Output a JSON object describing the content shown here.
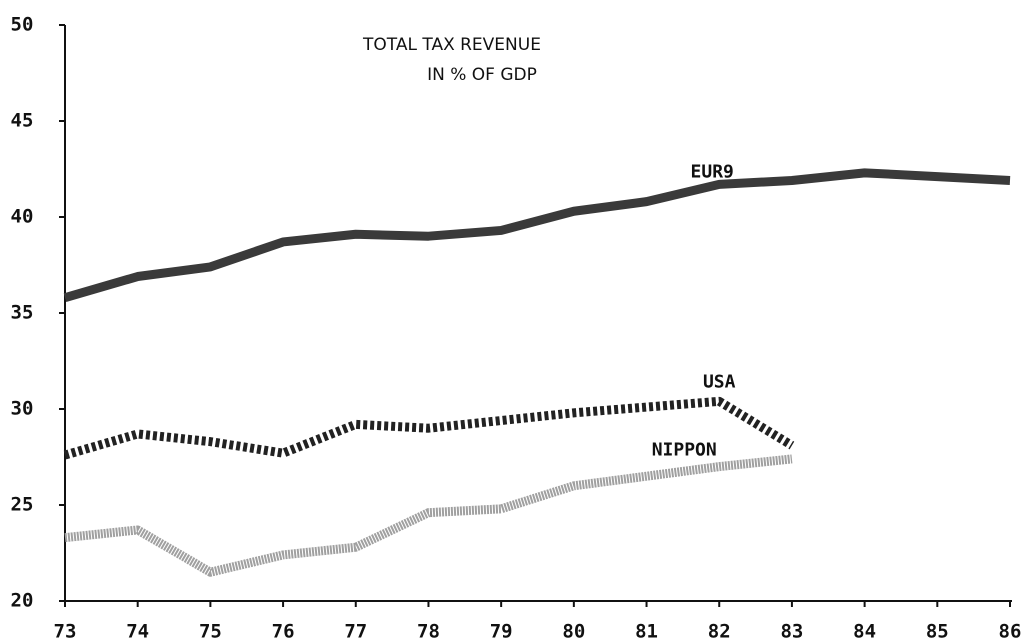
{
  "chart_data": {
    "type": "line",
    "title": "TOTAL TAX REVENUE",
    "subtitle": "IN % OF GDP",
    "x": [
      73,
      74,
      75,
      76,
      77,
      78,
      79,
      80,
      81,
      82,
      83,
      84,
      85,
      86
    ],
    "series": [
      {
        "name": "EUR9",
        "color": "#3a3a3a",
        "values": [
          35.8,
          36.9,
          37.4,
          38.7,
          39.1,
          39.0,
          39.3,
          40.3,
          40.8,
          41.7,
          41.9,
          42.3,
          42.1,
          41.9
        ]
      },
      {
        "name": "USA",
        "color": "#222222",
        "values": [
          27.6,
          28.7,
          28.3,
          27.7,
          29.2,
          29.0,
          29.4,
          29.8,
          30.1,
          30.4,
          28.1,
          null,
          null,
          null
        ]
      },
      {
        "name": "NIPPON",
        "color": "#a0a0a0",
        "values": [
          23.3,
          23.7,
          21.5,
          22.4,
          22.8,
          24.6,
          24.8,
          26.0,
          26.5,
          27.0,
          27.4,
          null,
          null,
          null
        ]
      }
    ],
    "xlim": [
      73,
      86
    ],
    "xticks": [
      73,
      74,
      75,
      76,
      77,
      78,
      79,
      80,
      81,
      82,
      83,
      84,
      85,
      86
    ],
    "ylim": [
      20,
      50
    ],
    "yticks": [
      20,
      25,
      30,
      35,
      40,
      45,
      50
    ],
    "grid": false
  }
}
